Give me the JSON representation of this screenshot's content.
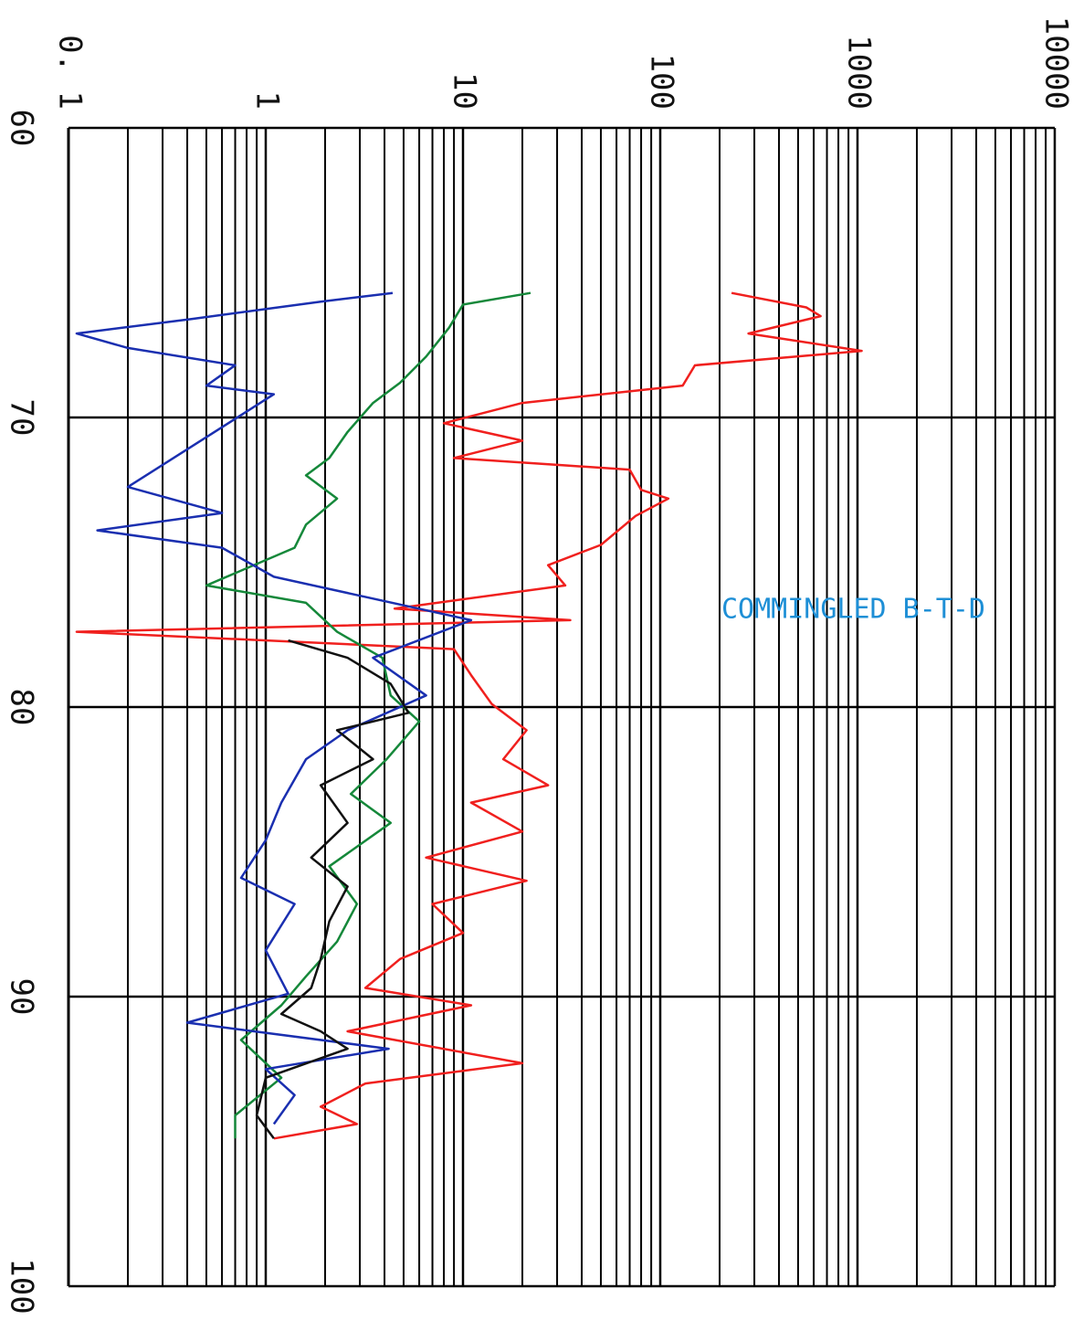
{
  "chart_data": {
    "type": "line",
    "log_scale": "y",
    "grid": true,
    "minor_grid": true,
    "xlim": [
      60,
      100
    ],
    "xticks": [
      60,
      70,
      80,
      90,
      100
    ],
    "ylim": [
      0.1,
      10000
    ],
    "yticks": [
      {
        "value": 0.1,
        "label": "0. 1"
      },
      1,
      10,
      100,
      1000,
      10000
    ],
    "annotation": {
      "text": "COMMINGLED B-T-D",
      "color": "#1e8fd6"
    },
    "series": [
      {
        "color": "#f0201e",
        "x": [
          65.7,
          66.2,
          66.5,
          67.1,
          67.7,
          68.2,
          68.9,
          69.5,
          70.2,
          70.8,
          71.4,
          71.8,
          72.5,
          72.8,
          73.4,
          74.4,
          75.1,
          75.8,
          76.6,
          77.0,
          77.4,
          78.0,
          78.9,
          79.9,
          80.8,
          81.8,
          82.7,
          83.3,
          84.3,
          85.2,
          86.0,
          86.8,
          87.8,
          88.7,
          89.7,
          90.3,
          91.2,
          92.3,
          93.0,
          93.8,
          94.4,
          94.9
        ],
        "values": [
          230,
          550,
          650,
          280,
          1050,
          150,
          130,
          20,
          8,
          20,
          9,
          70,
          80,
          110,
          75,
          50,
          27,
          33,
          4.5,
          35,
          0.11,
          9,
          11,
          14,
          21,
          16,
          27,
          11,
          20,
          6.5,
          21,
          7,
          10,
          4.8,
          3.2,
          11,
          2.6,
          20,
          3.2,
          1.9,
          2.9,
          1.1
        ]
      },
      {
        "color": "#15883a",
        "x": [
          65.7,
          66.1,
          66.9,
          67.9,
          68.8,
          69.5,
          70.5,
          71.4,
          72.0,
          72.8,
          73.7,
          74.5,
          75.8,
          76.4,
          77.4,
          78.3,
          79.6,
          80.5,
          81.8,
          83.0,
          84.0,
          85.5,
          86.8,
          88.1,
          89.3,
          90.3,
          91.5,
          92.8,
          94.1,
          94.9
        ],
        "values": [
          22,
          10,
          8.5,
          6.5,
          4.8,
          3.5,
          2.6,
          2.1,
          1.6,
          2.3,
          1.6,
          1.4,
          0.5,
          1.6,
          2.3,
          3.9,
          4.3,
          6,
          4.1,
          2.7,
          4.3,
          2.1,
          2.9,
          2.3,
          1.6,
          1.2,
          0.75,
          1.2,
          0.7,
          0.7
        ]
      },
      {
        "color": "#1a2fb0",
        "x": [
          65.7,
          66.0,
          66.6,
          67.1,
          67.6,
          68.2,
          68.9,
          69.2,
          72.4,
          73.3,
          73.9,
          74.5,
          75.5,
          77.0,
          78.3,
          79.6,
          80.8,
          81.8,
          83.3,
          84.6,
          85.9,
          86.8,
          88.4,
          89.9,
          90.9,
          91.8,
          92.5,
          93.4,
          94.4
        ],
        "values": [
          4.4,
          1.9,
          0.42,
          0.11,
          0.2,
          0.7,
          0.5,
          1.1,
          0.2,
          0.6,
          0.14,
          0.6,
          1.1,
          11,
          3.5,
          6.5,
          2.6,
          1.6,
          1.2,
          1.0,
          0.75,
          1.4,
          1.0,
          1.3,
          0.4,
          4.2,
          1.0,
          1.4,
          1.1
        ]
      },
      {
        "color": "#111111",
        "x": [
          77.7,
          78.3,
          79.2,
          80.2,
          80.8,
          81.8,
          82.7,
          84.0,
          85.2,
          86.2,
          87.4,
          88.7,
          89.7,
          90.6,
          91.2,
          91.8,
          92.8,
          94.1,
          94.9
        ],
        "values": [
          1.3,
          2.6,
          4.3,
          5.3,
          2.3,
          3.5,
          1.9,
          2.6,
          1.7,
          2.6,
          2.1,
          1.9,
          1.7,
          1.2,
          1.9,
          2.6,
          1.0,
          0.9,
          1.1
        ]
      }
    ]
  }
}
